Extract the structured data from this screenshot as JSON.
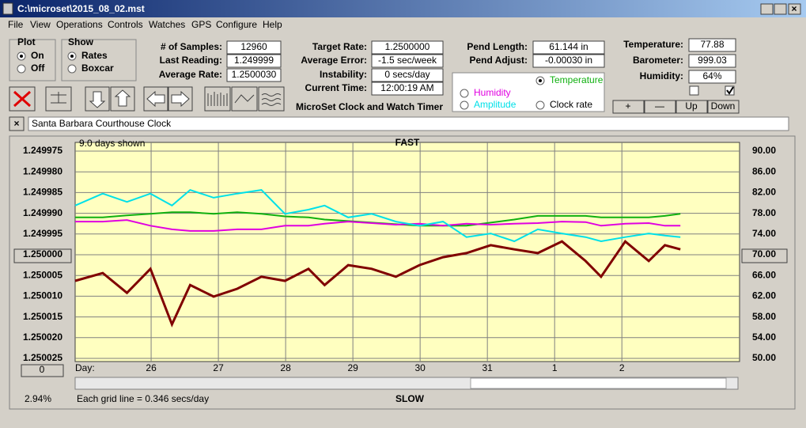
{
  "window": {
    "title": "C:\\microset\\2015_08_02.mst",
    "menu": [
      "File",
      "View",
      "Operations",
      "Controls",
      "Watches",
      "GPS",
      "Configure",
      "Help"
    ]
  },
  "plot_group": {
    "label": "Plot",
    "options": [
      "On",
      "Off"
    ]
  },
  "show_group": {
    "label": "Show",
    "options": [
      "Rates",
      "Boxcar"
    ]
  },
  "fields": [
    [
      "# of Samples:",
      "12960"
    ],
    [
      "Last Reading:",
      "1.249999"
    ],
    [
      "Average Rate:",
      "1.2500030"
    ],
    [
      "Target Rate:",
      "1.2500000"
    ],
    [
      "Average Error:",
      "-1.5 sec/week"
    ],
    [
      "Instability:",
      "0 secs/day"
    ],
    [
      "Current Time:",
      "12:00:19 AM"
    ],
    [
      "Pend Length:",
      "61.144 in"
    ],
    [
      "Pend Adjust:",
      "-0.00030 in"
    ],
    [
      "Temperature:",
      "77.88"
    ],
    [
      "Barometer:",
      "999.03"
    ],
    [
      "Humidity:",
      "64%"
    ]
  ],
  "timer_title": "MicroSet Clock and Watch Timer",
  "buttons": [
    "+",
    "—",
    "Up",
    "Down"
  ],
  "clock_name": "Santa Barbara Courthouse Clock",
  "status": {
    "zoom": "0",
    "percent": "2.94%",
    "scale_note": "Each grid line = 0.346 secs/day"
  },
  "chart_data": {
    "type": "line",
    "top_label": "FAST",
    "bottom_label": "SLOW",
    "days_shown": "9.0 days shown",
    "x_label": "Day:",
    "x": [
      24.87,
      25.28,
      25.64,
      25.99,
      26.31,
      26.58,
      26.93,
      27.28,
      27.64,
      27.99,
      28.34,
      28.58,
      28.93,
      29.28,
      29.64,
      29.99,
      30.34,
      30.69,
      31.05,
      31.4,
      31.75,
      32.11,
      32.46,
      32.69,
      33.05,
      33.4,
      33.64,
      33.87
    ],
    "xlim": [
      24.87,
      34.75
    ],
    "xticks": [
      26,
      27,
      28,
      29,
      30,
      31,
      {
        "value": 32,
        "label": "1"
      },
      {
        "value": 33,
        "label": "2"
      }
    ],
    "ylim": [
      1.250025,
      1.249975
    ],
    "yticks": [
      {
        "value": 1.249975,
        "label": "1.249975"
      },
      {
        "value": 1.24998,
        "label": "1.249980"
      },
      {
        "value": 1.249985,
        "label": "1.249985"
      },
      {
        "value": 1.24999,
        "label": "1.249990"
      },
      {
        "value": 1.249995,
        "label": "1.249995"
      },
      {
        "value": 1.25,
        "label": "1.250000"
      },
      {
        "value": 1.250005,
        "label": "1.250005"
      },
      {
        "value": 1.25001,
        "label": "1.250010"
      },
      {
        "value": 1.250015,
        "label": "1.250015"
      },
      {
        "value": 1.25002,
        "label": "1.250020"
      },
      {
        "value": 1.250025,
        "label": "1.250025"
      }
    ],
    "y2lim": [
      50,
      90
    ],
    "y2ticks": [
      {
        "value": 50,
        "label": "50.00"
      },
      {
        "value": 54,
        "label": "54.00"
      },
      {
        "value": 58,
        "label": "58.00"
      },
      {
        "value": 62,
        "label": "62.00"
      },
      {
        "value": 66,
        "label": "66.00"
      },
      {
        "value": 70,
        "label": "70.00"
      },
      {
        "value": 74,
        "label": "74.00"
      },
      {
        "value": 78,
        "label": "78.00"
      },
      {
        "value": 82,
        "label": "82.00"
      },
      {
        "value": 86,
        "label": "86.00"
      },
      {
        "value": 90,
        "label": "90.00"
      }
    ],
    "grid": true,
    "series": [
      {
        "name": "Clock rate",
        "color": "#800000",
        "values": [
          1.2500063,
          1.2500044,
          1.2500092,
          1.2500034,
          1.2500168,
          1.2500073,
          1.2500101,
          1.2500082,
          1.2500053,
          1.2500063,
          1.2500034,
          1.2500073,
          1.2500025,
          1.2500034,
          1.2500053,
          1.2500025,
          1.2500006,
          1.2499996,
          1.2499977,
          1.2499987,
          1.2499996,
          1.2499968,
          1.2500015,
          1.2500053,
          1.2499968,
          1.2500015,
          1.2499977,
          1.2499987
        ]
      },
      {
        "name": "Amplitude",
        "color": "#00e0e8",
        "axis": "y2",
        "values": [
          79.5,
          81.8,
          80.2,
          81.8,
          79.5,
          82.5,
          81.0,
          81.8,
          82.5,
          77.9,
          78.7,
          79.5,
          77.2,
          77.9,
          76.4,
          75.6,
          76.4,
          73.4,
          74.1,
          72.6,
          74.9,
          74.1,
          73.4,
          72.6,
          73.4,
          74.1,
          73.7,
          73.4
        ]
      },
      {
        "name": "Temperature",
        "color": "#10b010",
        "axis": "y2",
        "values": [
          77.2,
          77.2,
          77.6,
          77.9,
          78.2,
          78.2,
          77.9,
          78.2,
          77.9,
          77.4,
          77.2,
          76.8,
          76.5,
          76.2,
          75.9,
          75.6,
          75.6,
          75.6,
          76.2,
          76.8,
          77.5,
          77.5,
          77.5,
          77.2,
          77.2,
          77.2,
          77.5,
          77.9
        ]
      },
      {
        "name": "Humidity",
        "color": "#e000e0",
        "axis": "y2",
        "values": [
          76.4,
          76.4,
          76.7,
          75.6,
          74.9,
          74.6,
          74.6,
          74.9,
          74.9,
          75.6,
          75.6,
          76.0,
          76.4,
          76.1,
          75.8,
          76.0,
          75.6,
          76.0,
          75.8,
          76.0,
          76.1,
          76.4,
          76.3,
          75.6,
          76.0,
          76.1,
          75.6,
          75.6
        ]
      }
    ]
  }
}
